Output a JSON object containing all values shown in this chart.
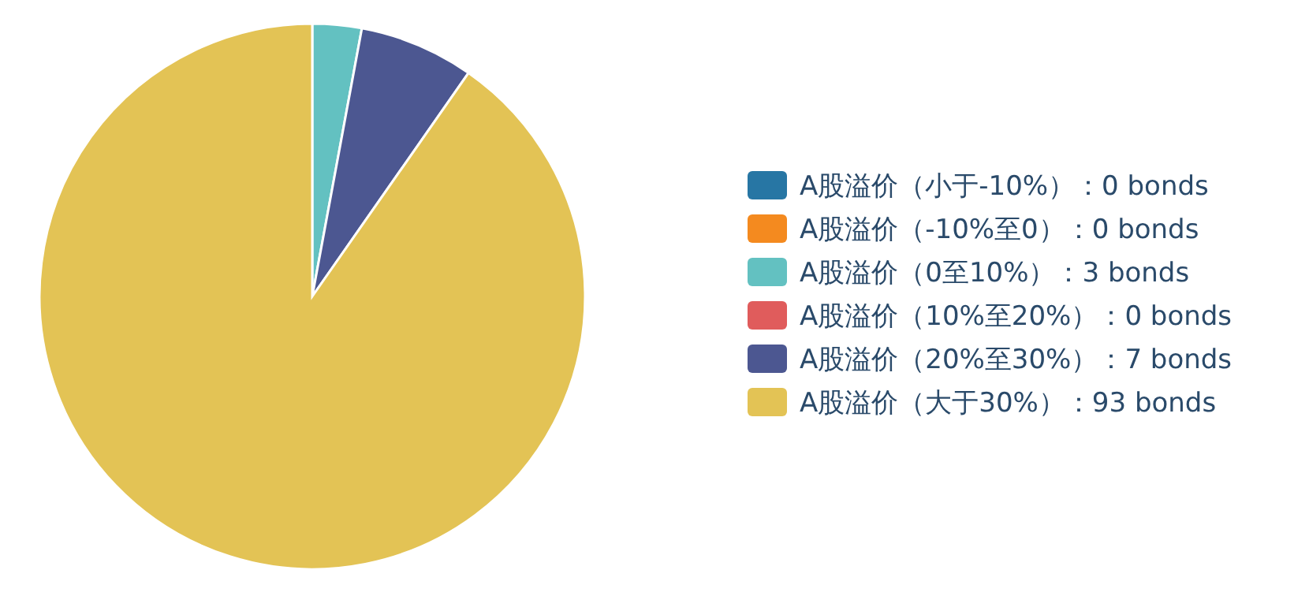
{
  "chart_data": {
    "type": "pie",
    "legend": "right",
    "categories": [
      "A股溢价（小于-10%）：0 bonds",
      "A股溢价（-10%至0）：0 bonds",
      "A股溢价（0至10%）：3 bonds",
      "A股溢价（10%至20%）：0 bonds",
      "A股溢价（20%至30%）：7 bonds",
      "A股溢价（大于30%）：93 bonds"
    ],
    "values": [
      0,
      0,
      3,
      0,
      7,
      93
    ],
    "colors": [
      "#2776a4",
      "#f48a1f",
      "#63c1c1",
      "#e05c5c",
      "#4c5791",
      "#e3c355"
    ]
  }
}
